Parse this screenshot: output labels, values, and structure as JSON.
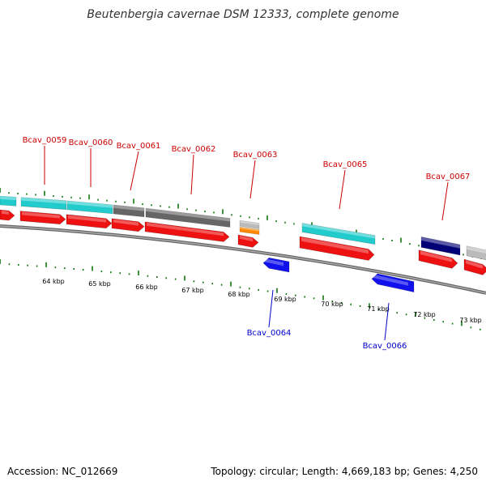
{
  "title": "Beutenbergia cavernae DSM 12333, complete genome",
  "footer": {
    "accession": "Accession: NC_012669",
    "summary": "Topology: circular; Length: 4,669,183 bp; Genes: 4,250"
  },
  "colors": {
    "cds_forward": "#ee1111",
    "cds_reverse": "#1111ee",
    "cyan_feature": "#22cccc",
    "dark_gray_feature": "#666666",
    "light_gray_feature": "#bbbbbb",
    "navy_feature": "#000077",
    "orange_feature": "#ff8800",
    "tick_green": "#117711",
    "backbone": "#888888",
    "label_top": "#cc0000",
    "label_bottom": "#0000cc"
  },
  "ticks": [
    {
      "label": "64 kbp"
    },
    {
      "label": "65 kbp"
    },
    {
      "label": "66 kbp"
    },
    {
      "label": "67 kbp"
    },
    {
      "label": "68 kbp"
    },
    {
      "label": "69 kbp"
    },
    {
      "label": "70 kbp"
    },
    {
      "label": "71 kbp"
    },
    {
      "label": "72 kbp"
    },
    {
      "label": "73 kbp"
    }
  ],
  "gene_labels_top": [
    {
      "label": "Bcav_0059"
    },
    {
      "label": "Bcav_0060"
    },
    {
      "label": "Bcav_0061"
    },
    {
      "label": "Bcav_0062"
    },
    {
      "label": "Bcav_0063"
    },
    {
      "label": "Bcav_0065"
    },
    {
      "label": "Bcav_0067"
    }
  ],
  "gene_labels_bottom": [
    {
      "label": "Bcav_0064"
    },
    {
      "label": "Bcav_0066"
    }
  ]
}
